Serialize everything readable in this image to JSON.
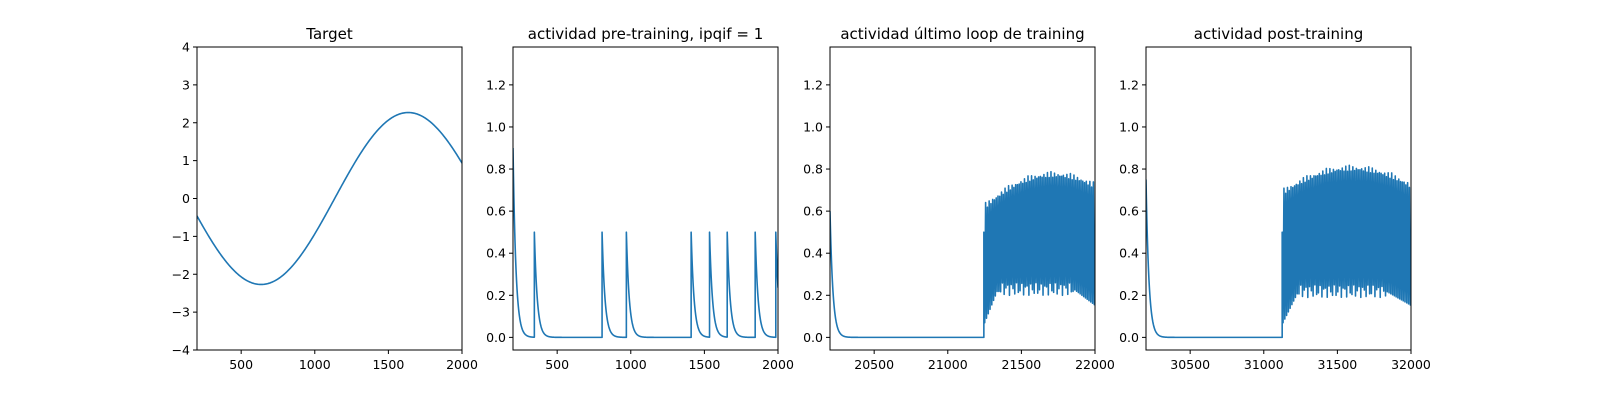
{
  "chart_data": [
    {
      "type": "line",
      "title": "Target",
      "xlim": [
        200,
        2000
      ],
      "ylim": [
        -4,
        4
      ],
      "xticks": [
        500,
        1000,
        1500,
        2000
      ],
      "yticks": [
        -4,
        -3,
        -2,
        -1,
        0,
        1,
        2,
        3,
        4
      ],
      "grid": false,
      "series": [
        {
          "kind": "sine",
          "amplitude": 2.27,
          "period": 2000,
          "peak_x": 1635,
          "x_range": [
            200,
            2000
          ],
          "color": "#1f77b4"
        }
      ]
    },
    {
      "type": "line",
      "title": "actividad pre-training, ipqif = 1",
      "xlim": [
        200,
        2000
      ],
      "ylim": [
        -0.06,
        1.38
      ],
      "xticks": [
        500,
        1000,
        1500,
        2000
      ],
      "yticks": [
        0.0,
        0.2,
        0.4,
        0.6,
        0.8,
        1.0,
        1.2
      ],
      "grid": false,
      "series": [
        {
          "kind": "spikes",
          "start_value": 0.9,
          "spike_value": 0.5,
          "decay_tau": 20,
          "spike_times": [
            345,
            805,
            970,
            1410,
            1535,
            1655,
            1845,
            1985
          ],
          "x_range": [
            200,
            2000
          ],
          "color": "#1f77b4"
        }
      ]
    },
    {
      "type": "line",
      "title": "actividad último loop de training",
      "xlim": [
        20200,
        22000
      ],
      "ylim": [
        -0.06,
        1.38
      ],
      "xticks": [
        20500,
        21000,
        21500,
        22000
      ],
      "yticks": [
        0.0,
        0.2,
        0.4,
        0.6,
        0.8,
        1.0,
        1.2
      ],
      "grid": false,
      "series": [
        {
          "kind": "burst",
          "start_value": 0.6,
          "decay_tau": 20,
          "burst_start": 21245,
          "burst_end": 22000,
          "cycle": 12,
          "first_peak": 0.5,
          "first_trough": 0.07,
          "peak_max": 0.79,
          "peak_max_x": 21720,
          "trough_plateau": 0.23,
          "trough_end": 0.15,
          "end_value": 0.3,
          "x_range": [
            20200,
            22000
          ],
          "color": "#1f77b4"
        }
      ]
    },
    {
      "type": "line",
      "title": "actividad post-training",
      "xlim": [
        30200,
        32000
      ],
      "ylim": [
        -0.06,
        1.38
      ],
      "xticks": [
        30500,
        31000,
        31500,
        32000
      ],
      "yticks": [
        0.0,
        0.2,
        0.4,
        0.6,
        0.8,
        1.0,
        1.2
      ],
      "grid": false,
      "series": [
        {
          "kind": "burst",
          "start_value": 0.75,
          "decay_tau": 20,
          "burst_start": 31125,
          "burst_end": 32000,
          "cycle": 12,
          "first_peak": 0.5,
          "first_trough": 0.07,
          "peak_max": 0.82,
          "peak_max_x": 31600,
          "trough_plateau": 0.22,
          "trough_end": 0.15,
          "end_value": 0.3,
          "x_range": [
            30200,
            32000
          ],
          "color": "#1f77b4"
        }
      ]
    }
  ]
}
